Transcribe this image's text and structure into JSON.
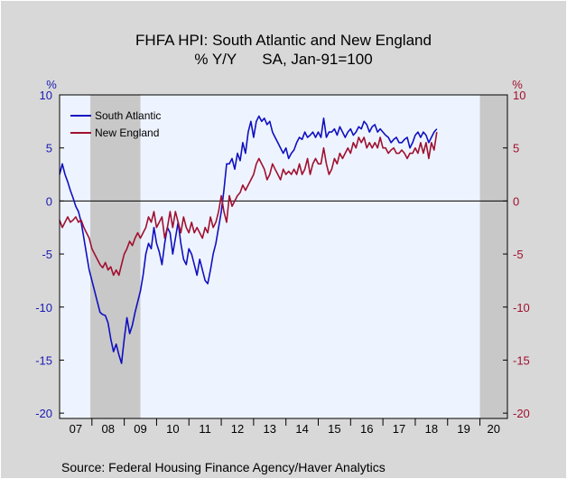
{
  "chart_data": {
    "type": "line",
    "title": "FHFA HPI: South Atlantic and New England",
    "subtitle": "% Y/Y      SA, Jan-91=100",
    "source": "Source:  Federal Housing Finance Agency/Haver Analytics",
    "left_axis": {
      "unit": "%",
      "ticks": [
        "10",
        "5",
        "0",
        "-5",
        "-10",
        "-15",
        "-20"
      ],
      "range": [
        -20.5,
        10
      ],
      "color": "#1a1ab4"
    },
    "right_axis": {
      "unit": "%",
      "ticks": [
        "10",
        "5",
        "0",
        "-5",
        "-10",
        "-15",
        "-20"
      ],
      "range": [
        -20.5,
        10
      ],
      "color": "#a01030"
    },
    "x_labels": [
      "07",
      "08",
      "09",
      "10",
      "11",
      "12",
      "13",
      "14",
      "15",
      "16",
      "17",
      "18",
      "19",
      "20"
    ],
    "x_range": [
      2007,
      2020.85
    ],
    "recessions": [
      [
        2007.95,
        2009.5
      ],
      [
        2020.0,
        2020.85
      ]
    ],
    "legend_position": "top-left",
    "series": [
      {
        "name": "South Atlantic",
        "color": "#1010c0",
        "x_start": 2007.0,
        "step": 0.0833333,
        "values": [
          2.5,
          3.5,
          2.5,
          1.8,
          1.0,
          0.3,
          -0.5,
          -1.0,
          -2.0,
          -3.5,
          -5.0,
          -6.5,
          -7.5,
          -8.5,
          -9.5,
          -10.5,
          -10.7,
          -10.8,
          -11.5,
          -13.0,
          -14.2,
          -13.5,
          -14.5,
          -15.3,
          -13.0,
          -11.0,
          -12.5,
          -11.7,
          -10.5,
          -9.5,
          -8.5,
          -7.0,
          -5.0,
          -4.0,
          -4.5,
          -2.5,
          -4.0,
          -4.8,
          -6.0,
          -4.0,
          -2.5,
          -3.0,
          -5.0,
          -3.5,
          -2.0,
          -4.0,
          -5.5,
          -6.0,
          -4.5,
          -5.0,
          -6.0,
          -7.0,
          -5.5,
          -6.5,
          -7.5,
          -7.8,
          -6.5,
          -5.0,
          -4.0,
          -2.5,
          -1.0,
          1.0,
          3.5,
          3.5,
          4.0,
          3.0,
          4.5,
          3.8,
          5.5,
          4.5,
          6.5,
          7.5,
          6.0,
          7.5,
          8.0,
          7.5,
          7.8,
          7.2,
          7.5,
          6.5,
          6.0,
          5.5,
          5.0,
          4.5,
          5.0,
          4.0,
          4.5,
          4.8,
          5.5,
          6.0,
          5.8,
          6.5,
          6.0,
          6.2,
          6.5,
          6.0,
          6.5,
          6.0,
          7.8,
          6.0,
          6.5,
          6.5,
          6.8,
          6.2,
          7.0,
          6.5,
          6.0,
          6.5,
          6.8,
          6.2,
          6.5,
          7.0,
          6.8,
          7.5,
          7.2,
          6.5,
          7.0,
          7.2,
          6.5,
          6.8,
          6.5,
          6.2,
          6.0,
          5.5,
          5.8,
          6.0,
          5.5,
          5.5,
          5.8,
          6.0,
          5.0,
          5.5,
          6.2,
          6.5,
          6.0,
          6.5,
          6.2,
          5.5,
          6.0,
          6.5,
          6.8
        ]
      },
      {
        "name": "New England",
        "color": "#a01030",
        "x_start": 2007.0,
        "step": 0.0833333,
        "values": [
          -1.8,
          -2.5,
          -2.0,
          -1.5,
          -2.0,
          -1.8,
          -1.5,
          -2.0,
          -1.8,
          -2.5,
          -3.0,
          -3.5,
          -4.5,
          -5.0,
          -5.5,
          -6.0,
          -6.3,
          -5.8,
          -6.5,
          -6.2,
          -7.0,
          -6.5,
          -7.0,
          -6.0,
          -5.0,
          -4.5,
          -3.8,
          -4.2,
          -3.5,
          -3.0,
          -3.5,
          -3.0,
          -2.5,
          -1.5,
          -2.0,
          -1.0,
          -2.5,
          -2.0,
          -1.5,
          -3.5,
          -2.5,
          -1.0,
          -2.5,
          -1.0,
          -2.0,
          -3.0,
          -1.5,
          -2.5,
          -3.0,
          -2.0,
          -3.0,
          -2.5,
          -3.0,
          -3.5,
          -2.5,
          -3.0,
          -1.5,
          -2.5,
          -2.0,
          -1.0,
          0.5,
          -1.0,
          -2.0,
          0.5,
          -0.5,
          0.0,
          0.5,
          0.8,
          1.5,
          1.0,
          1.5,
          2.0,
          2.5,
          3.5,
          4.0,
          3.5,
          3.0,
          2.0,
          2.5,
          3.5,
          3.0,
          2.5,
          2.0,
          3.0,
          2.5,
          2.8,
          2.5,
          3.0,
          2.5,
          3.5,
          2.5,
          3.0,
          4.0,
          2.5,
          3.5,
          4.0,
          3.5,
          3.5,
          5.0,
          3.5,
          2.5,
          3.0,
          4.0,
          3.5,
          4.5,
          4.0,
          4.5,
          5.0,
          4.5,
          5.5,
          5.0,
          6.0,
          5.5,
          6.0,
          5.0,
          5.5,
          5.0,
          5.5,
          5.0,
          6.0,
          5.0,
          5.0,
          4.5,
          4.8,
          5.0,
          4.5,
          4.5,
          4.8,
          4.5,
          4.0,
          4.5,
          4.5,
          5.0,
          4.5,
          5.5,
          4.5,
          5.5,
          4.0,
          5.5,
          4.8,
          6.5
        ]
      }
    ]
  }
}
